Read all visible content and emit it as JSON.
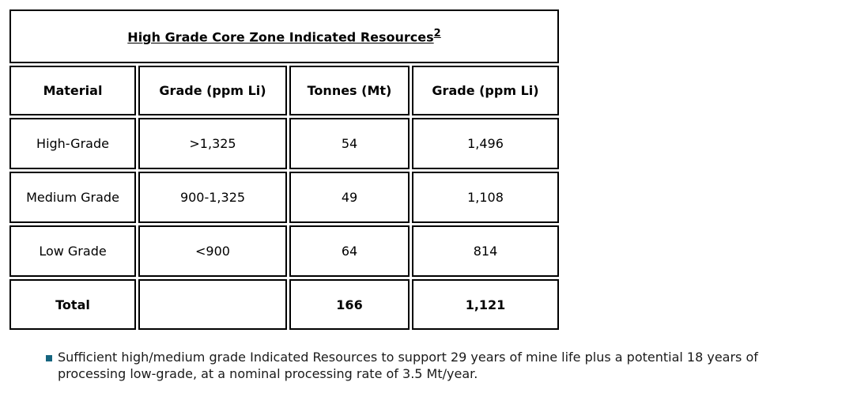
{
  "table": {
    "title": "High Grade Core Zone Indicated Resources",
    "title_superscript": "2",
    "columns": [
      "Material",
      "Grade (ppm Li)",
      "Tonnes (Mt)",
      "Grade (ppm Li)"
    ],
    "rows": [
      {
        "material": "High-Grade",
        "grade_range": ">1,325",
        "tonnes": "54",
        "grade": "1,496"
      },
      {
        "material": "Medium Grade",
        "grade_range": "900-1,325",
        "tonnes": "49",
        "grade": "1,108"
      },
      {
        "material": "Low Grade",
        "grade_range": "<900",
        "tonnes": "64",
        "grade": "814"
      }
    ],
    "total": {
      "material": "Total",
      "grade_range": "",
      "tonnes": "166",
      "grade": "1,121"
    }
  },
  "note": {
    "text": "Sufficient high/medium grade Indicated Resources to support 29 years of mine life plus a potential 18 years of processing low-grade, at a nominal processing rate of 3.5 Mt/year."
  },
  "colors": {
    "bullet": "#16657f",
    "table_border": "#000000",
    "text": "#1a1a1a"
  },
  "chart_data": {
    "type": "table",
    "title": "High Grade Core Zone Indicated Resources",
    "columns": [
      "Material",
      "Grade (ppm Li)",
      "Tonnes (Mt)",
      "Grade (ppm Li)"
    ],
    "rows": [
      [
        "High-Grade",
        ">1,325",
        "54",
        "1,496"
      ],
      [
        "Medium Grade",
        "900-1,325",
        "49",
        "1,108"
      ],
      [
        "Low Grade",
        "<900",
        "64",
        "814"
      ],
      [
        "Total",
        "",
        "166",
        "1,121"
      ]
    ]
  }
}
